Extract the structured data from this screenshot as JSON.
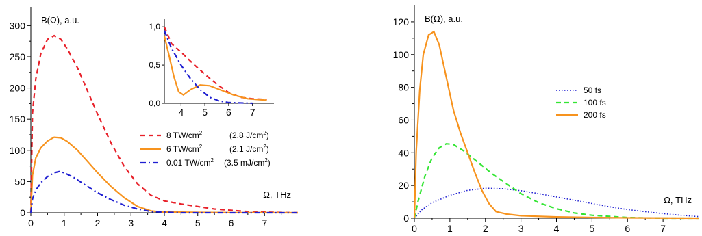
{
  "chart_data": [
    {
      "type": "line",
      "ylabel": "B(Ω), a.u.",
      "xlabel": "Ω, THz",
      "xlim": [
        0,
        8
      ],
      "ylim": [
        0,
        330
      ],
      "xticks": [
        0,
        1,
        2,
        3,
        4,
        5,
        6,
        7
      ],
      "yticks": [
        0,
        50,
        100,
        150,
        200,
        250,
        300
      ],
      "grid": false,
      "legend_position": "right",
      "series": [
        {
          "name": "8 TW/cm",
          "sup": "2",
          "extra": "(2.8 J/cm",
          "extra_close": ")",
          "color": "#e8212a",
          "dash": "dash",
          "points": [
            [
              0,
              0
            ],
            [
              0.05,
              160
            ],
            [
              0.15,
              215
            ],
            [
              0.3,
              255
            ],
            [
              0.5,
              278
            ],
            [
              0.7,
              284
            ],
            [
              0.9,
              278
            ],
            [
              1.1,
              262
            ],
            [
              1.4,
              232
            ],
            [
              1.7,
              195
            ],
            [
              2.0,
              158
            ],
            [
              2.4,
              112
            ],
            [
              2.8,
              74
            ],
            [
              3.2,
              46
            ],
            [
              3.6,
              28
            ],
            [
              4.0,
              19
            ],
            [
              4.5,
              14
            ],
            [
              5.0,
              10
            ],
            [
              5.5,
              6
            ],
            [
              6.0,
              4
            ],
            [
              6.5,
              2
            ],
            [
              7.0,
              1
            ],
            [
              8.0,
              0
            ]
          ]
        },
        {
          "name": "6 TW/cm",
          "sup": "2",
          "extra": "(2.1 J/cm",
          "extra_close": ")",
          "color": "#f7931e",
          "dash": "solid",
          "points": [
            [
              0,
              0
            ],
            [
              0.05,
              60
            ],
            [
              0.15,
              88
            ],
            [
              0.3,
              104
            ],
            [
              0.5,
              115
            ],
            [
              0.7,
              121
            ],
            [
              0.9,
              120
            ],
            [
              1.1,
              114
            ],
            [
              1.4,
              100
            ],
            [
              1.7,
              82
            ],
            [
              2.0,
              64
            ],
            [
              2.4,
              42
            ],
            [
              2.8,
              24
            ],
            [
              3.2,
              10
            ],
            [
              3.6,
              3
            ],
            [
              4.0,
              1
            ],
            [
              4.5,
              1
            ],
            [
              5.0,
              0.5
            ],
            [
              6.0,
              0.2
            ],
            [
              8.0,
              0
            ]
          ]
        },
        {
          "name": "0.01 TW/cm",
          "sup": "2",
          "extra": "(3.5 mJ/cm",
          "extra_close": ")",
          "color": "#1f1fd1",
          "dash": "dashdot",
          "points": [
            [
              0,
              0
            ],
            [
              0.05,
              22
            ],
            [
              0.15,
              36
            ],
            [
              0.3,
              48
            ],
            [
              0.5,
              58
            ],
            [
              0.7,
              64
            ],
            [
              0.85,
              66
            ],
            [
              1.0,
              64
            ],
            [
              1.3,
              56
            ],
            [
              1.7,
              42
            ],
            [
              2.0,
              32
            ],
            [
              2.4,
              21
            ],
            [
              2.8,
              12
            ],
            [
              3.2,
              6
            ],
            [
              3.6,
              2
            ],
            [
              4.0,
              1
            ],
            [
              4.5,
              0
            ],
            [
              8.0,
              0
            ]
          ]
        }
      ],
      "inset": {
        "xlim": [
          3.3,
          7.9
        ],
        "ylim": [
          0,
          1.1
        ],
        "xticks": [
          "4",
          "5",
          "6",
          "7"
        ],
        "xtick_values": [
          4,
          5,
          6,
          7
        ],
        "yticks": [
          "0,0",
          "0,5",
          "1,0"
        ],
        "ytick_values": [
          0,
          0.5,
          1.0
        ],
        "series": [
          {
            "color": "#e8212a",
            "dash": "dash",
            "points": [
              [
                3.3,
                1.0
              ],
              [
                3.6,
                0.78
              ],
              [
                4.0,
                0.67
              ],
              [
                4.5,
                0.52
              ],
              [
                5.0,
                0.38
              ],
              [
                5.5,
                0.25
              ],
              [
                6.0,
                0.14
              ],
              [
                6.5,
                0.08
              ],
              [
                7.0,
                0.06
              ],
              [
                7.6,
                0.05
              ]
            ]
          },
          {
            "color": "#f7931e",
            "dash": "solid",
            "points": [
              [
                3.3,
                0.88
              ],
              [
                3.5,
                0.62
              ],
              [
                3.7,
                0.35
              ],
              [
                3.9,
                0.15
              ],
              [
                4.1,
                0.11
              ],
              [
                4.4,
                0.18
              ],
              [
                4.8,
                0.24
              ],
              [
                5.2,
                0.23
              ],
              [
                5.7,
                0.17
              ],
              [
                6.2,
                0.11
              ],
              [
                6.8,
                0.06
              ],
              [
                7.6,
                0.04
              ]
            ]
          },
          {
            "color": "#1f1fd1",
            "dash": "dashdot",
            "points": [
              [
                3.3,
                0.95
              ],
              [
                3.6,
                0.72
              ],
              [
                4.0,
                0.5
              ],
              [
                4.4,
                0.32
              ],
              [
                4.8,
                0.18
              ],
              [
                5.2,
                0.08
              ],
              [
                5.6,
                0.03
              ],
              [
                6.0,
                0.01
              ],
              [
                7.0,
                0.0
              ]
            ]
          }
        ]
      }
    },
    {
      "type": "line",
      "ylabel": "B(Ω), a.u.",
      "xlabel": "Ω, THz",
      "xlim": [
        0,
        8
      ],
      "ylim": [
        0,
        130
      ],
      "xticks": [
        0,
        1,
        2,
        3,
        4,
        5,
        6,
        7
      ],
      "yticks": [
        0,
        20,
        40,
        60,
        80,
        100,
        120
      ],
      "grid": false,
      "legend_position": "right",
      "series": [
        {
          "name": "50 fs",
          "color": "#1f1fd1",
          "dash": "dot",
          "points": [
            [
              0,
              0
            ],
            [
              0.2,
              5
            ],
            [
              0.5,
              9.5
            ],
            [
              1.0,
              14
            ],
            [
              1.5,
              17
            ],
            [
              2.0,
              18.3
            ],
            [
              2.5,
              18
            ],
            [
              3.0,
              16.8
            ],
            [
              3.5,
              15
            ],
            [
              4.0,
              13
            ],
            [
              4.5,
              11
            ],
            [
              5.0,
              9
            ],
            [
              5.5,
              7
            ],
            [
              6.0,
              5.3
            ],
            [
              6.5,
              4
            ],
            [
              7.0,
              2.8
            ],
            [
              7.5,
              1.8
            ],
            [
              8.0,
              1
            ]
          ]
        },
        {
          "name": "100 fs",
          "color": "#33e533",
          "dash": "dash",
          "points": [
            [
              0,
              0
            ],
            [
              0.1,
              10
            ],
            [
              0.3,
              26
            ],
            [
              0.5,
              37
            ],
            [
              0.7,
              43
            ],
            [
              0.9,
              45.5
            ],
            [
              1.1,
              45
            ],
            [
              1.4,
              41
            ],
            [
              1.8,
              34
            ],
            [
              2.2,
              27
            ],
            [
              2.6,
              21
            ],
            [
              3.0,
              15
            ],
            [
              3.5,
              9.5
            ],
            [
              4.0,
              5.8
            ],
            [
              4.5,
              3.2
            ],
            [
              5.0,
              1.8
            ],
            [
              6.0,
              0.4
            ],
            [
              7.0,
              0
            ],
            [
              8.0,
              0
            ]
          ]
        },
        {
          "name": "200 fs",
          "color": "#f7931e",
          "dash": "solid",
          "points": [
            [
              0,
              0
            ],
            [
              0.05,
              40
            ],
            [
              0.15,
              78
            ],
            [
              0.25,
              100
            ],
            [
              0.4,
              112
            ],
            [
              0.55,
              114
            ],
            [
              0.7,
              106
            ],
            [
              0.9,
              86
            ],
            [
              1.1,
              66
            ],
            [
              1.3,
              52
            ],
            [
              1.5,
              40
            ],
            [
              1.7,
              28
            ],
            [
              1.9,
              17
            ],
            [
              2.1,
              9
            ],
            [
              2.3,
              4
            ],
            [
              2.6,
              2.5
            ],
            [
              3.0,
              1.5
            ],
            [
              4.0,
              0.8
            ],
            [
              5.0,
              0.4
            ],
            [
              6.0,
              0.2
            ],
            [
              8.0,
              0
            ]
          ]
        }
      ]
    }
  ]
}
